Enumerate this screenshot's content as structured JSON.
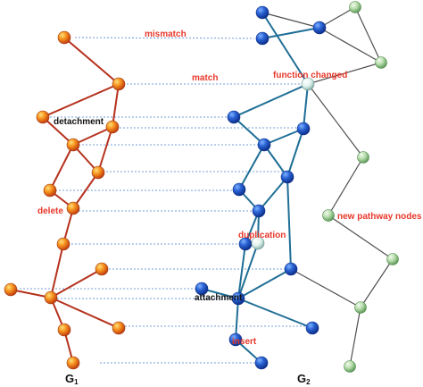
{
  "annotations": {
    "mismatch": "mismatch",
    "match": "match",
    "function_changed": "function changed",
    "detachment": "detachment",
    "delete": "delete",
    "duplication": "duplication",
    "new_pathway_nodes": "new pathway nodes",
    "attachment": "attachment",
    "insert": "insert"
  },
  "graphs": {
    "g1": {
      "letter": "G",
      "sub": "1"
    },
    "g2": {
      "letter": "G",
      "sub": "2"
    }
  },
  "colors": {
    "g1_edge": "#b5321e",
    "g2_edge": "#1f6e96",
    "new_edge": "#505050",
    "dotted": "#4a7fd0",
    "red_text": "#e8372a",
    "g1_node": "#f07a1a",
    "g2_node": "#1f5ec8",
    "new_node": "#a8d5a0",
    "changed_node": "#e0f1ea"
  },
  "icons": {
    "g1_node": "orange-sphere",
    "g2_node": "blue-sphere",
    "new_node": "green-sphere",
    "changed_node": "pale-sphere"
  }
}
